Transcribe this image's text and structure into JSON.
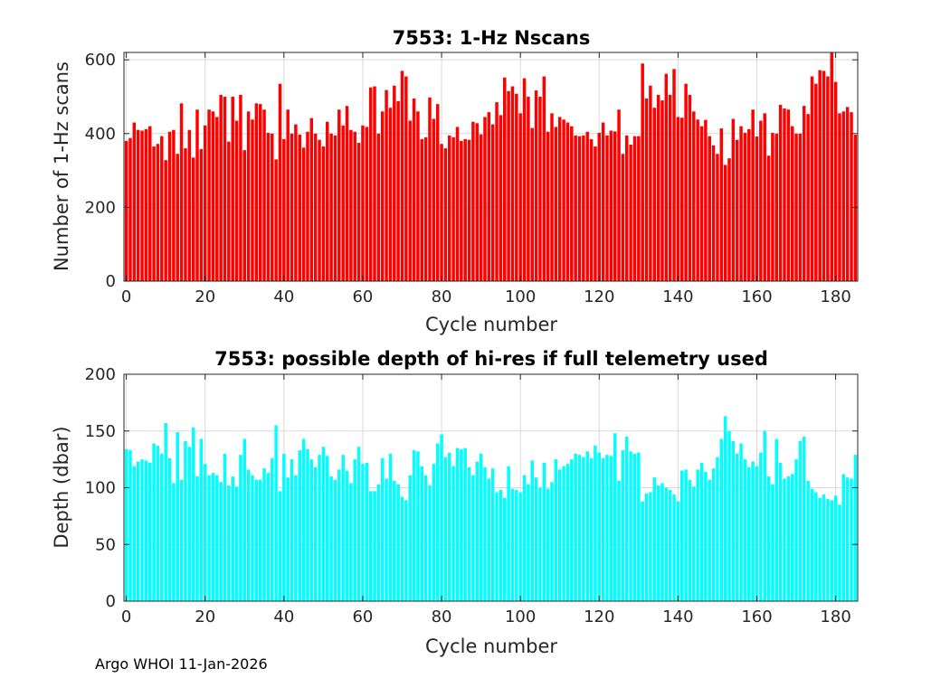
{
  "footer": "Argo WHOI 11-Jan-2026",
  "colors": {
    "top_bars": "#ff0000",
    "bottom_bars": "#00ffff",
    "grid": "#d9d9d9",
    "axis": "#262626"
  },
  "chart_data": [
    {
      "type": "bar",
      "title": "7553: 1-Hz Nscans",
      "xlabel": "Cycle number",
      "ylabel": "Number of 1-Hz scans",
      "xlim": [
        -0.6,
        185.6
      ],
      "ylim": [
        0,
        620
      ],
      "xticks": [
        0,
        20,
        40,
        60,
        80,
        100,
        120,
        140,
        160,
        180
      ],
      "yticks": [
        0,
        200,
        400,
        600
      ],
      "grid": true,
      "x_start": 0,
      "values": [
        380,
        388,
        430,
        410,
        408,
        412,
        420,
        365,
        372,
        393,
        328,
        405,
        410,
        345,
        482,
        360,
        410,
        335,
        465,
        358,
        422,
        465,
        460,
        445,
        505,
        500,
        378,
        500,
        435,
        505,
        355,
        460,
        438,
        482,
        480,
        465,
        402,
        400,
        330,
        535,
        385,
        465,
        400,
        425,
        397,
        362,
        405,
        442,
        400,
        383,
        365,
        432,
        400,
        395,
        465,
        422,
        475,
        410,
        405,
        375,
        422,
        418,
        525,
        528,
        400,
        460,
        518,
        470,
        530,
        488,
        570,
        555,
        435,
        495,
        460,
        385,
        390,
        498,
        440,
        480,
        372,
        360,
        395,
        390,
        418,
        380,
        385,
        383,
        432,
        428,
        398,
        445,
        458,
        425,
        485,
        450,
        552,
        515,
        528,
        508,
        455,
        550,
        500,
        415,
        517,
        500,
        555,
        405,
        455,
        418,
        445,
        438,
        430,
        420,
        395,
        393,
        395,
        405,
        385,
        365,
        402,
        430,
        395,
        408,
        406,
        465,
        345,
        395,
        370,
        393,
        393,
        590,
        495,
        530,
        470,
        505,
        490,
        562,
        505,
        575,
        445,
        443,
        535,
        505,
        460,
        438,
        420,
        437,
        393,
        368,
        345,
        414,
        315,
        333,
        440,
        383,
        420,
        402,
        412,
        465,
        392,
        435,
        455,
        340,
        402,
        400,
        478,
        468,
        465,
        420,
        400,
        400,
        475,
        453,
        555,
        535,
        572,
        570,
        555,
        625,
        540,
        455,
        460,
        472,
        458,
        397
      ]
    },
    {
      "type": "bar",
      "title": "7553: possible depth of hi-res if full telemetry used",
      "xlabel": "Cycle number",
      "ylabel": "Depth (dbar)",
      "xlim": [
        -0.6,
        185.6
      ],
      "ylim": [
        0,
        200
      ],
      "xticks": [
        0,
        20,
        40,
        60,
        80,
        100,
        120,
        140,
        160,
        180
      ],
      "yticks": [
        0,
        50,
        100,
        150,
        200
      ],
      "grid": true,
      "x_start": 0,
      "values": [
        134,
        133,
        119,
        123,
        125,
        124,
        122,
        139,
        137,
        130,
        157,
        126,
        104,
        149,
        107,
        141,
        136,
        153,
        110,
        143,
        121,
        111,
        113,
        111,
        105,
        130,
        102,
        110,
        101,
        129,
        143,
        116,
        111,
        107,
        107,
        117,
        113,
        126,
        155,
        97,
        130,
        109,
        125,
        111,
        133,
        143,
        134,
        125,
        118,
        129,
        136,
        128,
        110,
        107,
        116,
        129,
        115,
        104,
        125,
        136,
        121,
        122,
        97,
        97,
        103,
        126,
        108,
        130,
        106,
        103,
        92,
        89,
        111,
        133,
        132,
        119,
        111,
        102,
        121,
        139,
        147,
        127,
        131,
        119,
        135,
        134,
        135,
        118,
        111,
        123,
        130,
        118,
        108,
        117,
        96,
        98,
        91,
        119,
        99,
        98,
        96,
        111,
        103,
        124,
        109,
        100,
        122,
        99,
        105,
        125,
        116,
        119,
        121,
        125,
        130,
        129,
        127,
        132,
        126,
        137,
        131,
        126,
        129,
        128,
        148,
        106,
        133,
        145,
        132,
        130,
        131,
        88,
        95,
        96,
        109,
        102,
        104,
        100,
        98,
        94,
        88,
        115,
        116,
        107,
        101,
        116,
        122,
        114,
        107,
        117,
        127,
        143,
        163,
        150,
        141,
        130,
        139,
        125,
        118,
        123,
        119,
        131,
        150,
        110,
        103,
        143,
        122,
        108,
        110,
        112,
        125,
        141,
        145,
        106,
        99,
        96,
        91,
        94,
        90,
        89,
        93,
        85,
        112,
        109,
        108,
        129
      ]
    }
  ]
}
